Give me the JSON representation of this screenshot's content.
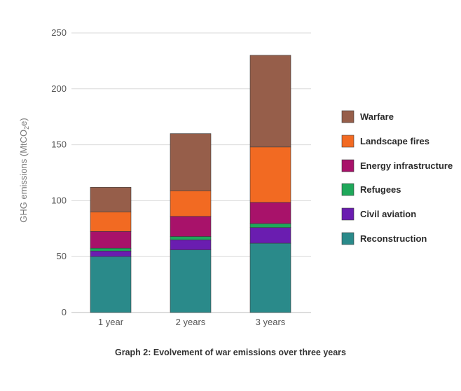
{
  "caption": "Graph 2: Evolvement of war emissions over three years",
  "chart_data": {
    "type": "bar",
    "stacked": true,
    "categories": [
      "1 year",
      "2 years",
      "3 years"
    ],
    "ylabel": "GHG emissions (MtCO2e)",
    "ylim": [
      0,
      250
    ],
    "yticks": [
      0,
      50,
      100,
      150,
      200,
      250
    ],
    "grid": true,
    "legend_position": "right",
    "series": [
      {
        "name": "Reconstruction",
        "color": "#2A8A8A",
        "values": [
          50,
          56,
          62
        ]
      },
      {
        "name": "Civil aviation",
        "color": "#6A1DB0",
        "values": [
          5,
          9,
          14
        ]
      },
      {
        "name": "Refugees",
        "color": "#1FA85A",
        "values": [
          2.5,
          3,
          3.5
        ]
      },
      {
        "name": "Energy infrastructure",
        "color": "#A8126A",
        "values": [
          15,
          18,
          19
        ]
      },
      {
        "name": "Landscape fires",
        "color": "#F26A22",
        "values": [
          17.5,
          23,
          49.5
        ]
      },
      {
        "name": "Warfare",
        "color": "#965E4A",
        "values": [
          22,
          51,
          82
        ]
      }
    ]
  }
}
